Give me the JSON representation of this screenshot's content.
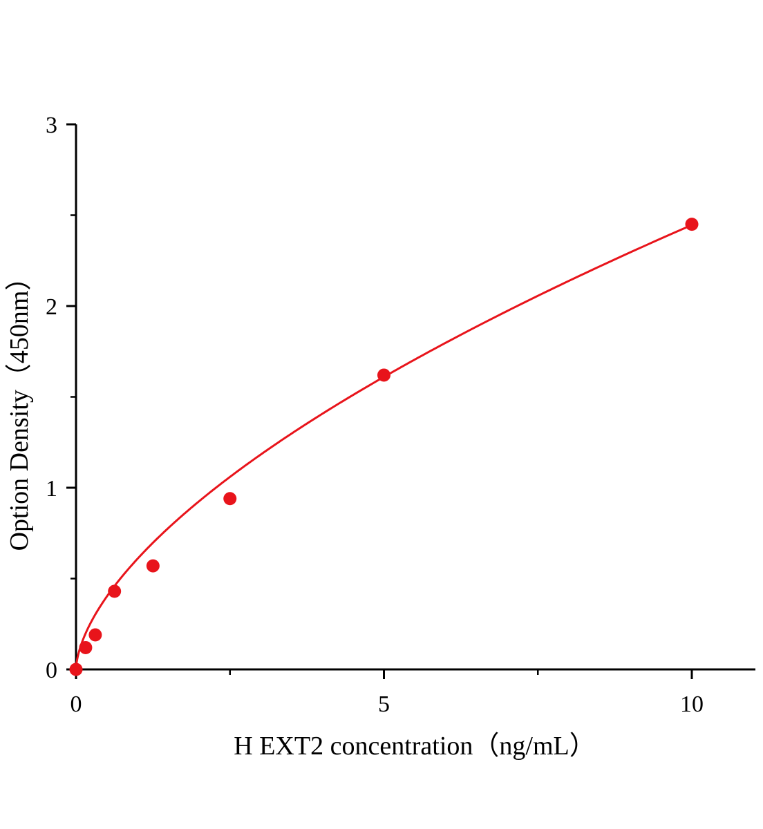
{
  "chart_data": {
    "type": "scatter",
    "title": "",
    "xlabel": "H EXT2 concentration（ng/mL）",
    "ylabel": "Option Density（450nm）",
    "xlim": [
      0,
      11
    ],
    "ylim": [
      0,
      3
    ],
    "x_ticks": [
      0,
      5,
      10
    ],
    "x_minor_ticks": [
      2.5,
      7.5
    ],
    "y_ticks": [
      0,
      1,
      2,
      3
    ],
    "grid": false,
    "colors": {
      "series": "#e8141b",
      "axis": "#000000"
    },
    "series": [
      {
        "points": [
          {
            "x": 0,
            "y": 0.0
          },
          {
            "x": 0.156,
            "y": 0.12
          },
          {
            "x": 0.313,
            "y": 0.19
          },
          {
            "x": 0.625,
            "y": 0.43
          },
          {
            "x": 1.25,
            "y": 0.57
          },
          {
            "x": 2.5,
            "y": 0.94
          },
          {
            "x": 5,
            "y": 1.62
          },
          {
            "x": 10,
            "y": 2.45
          }
        ],
        "fit_curve": {
          "type": "power",
          "a": 0.6095,
          "b": 0.6035
        }
      }
    ]
  }
}
